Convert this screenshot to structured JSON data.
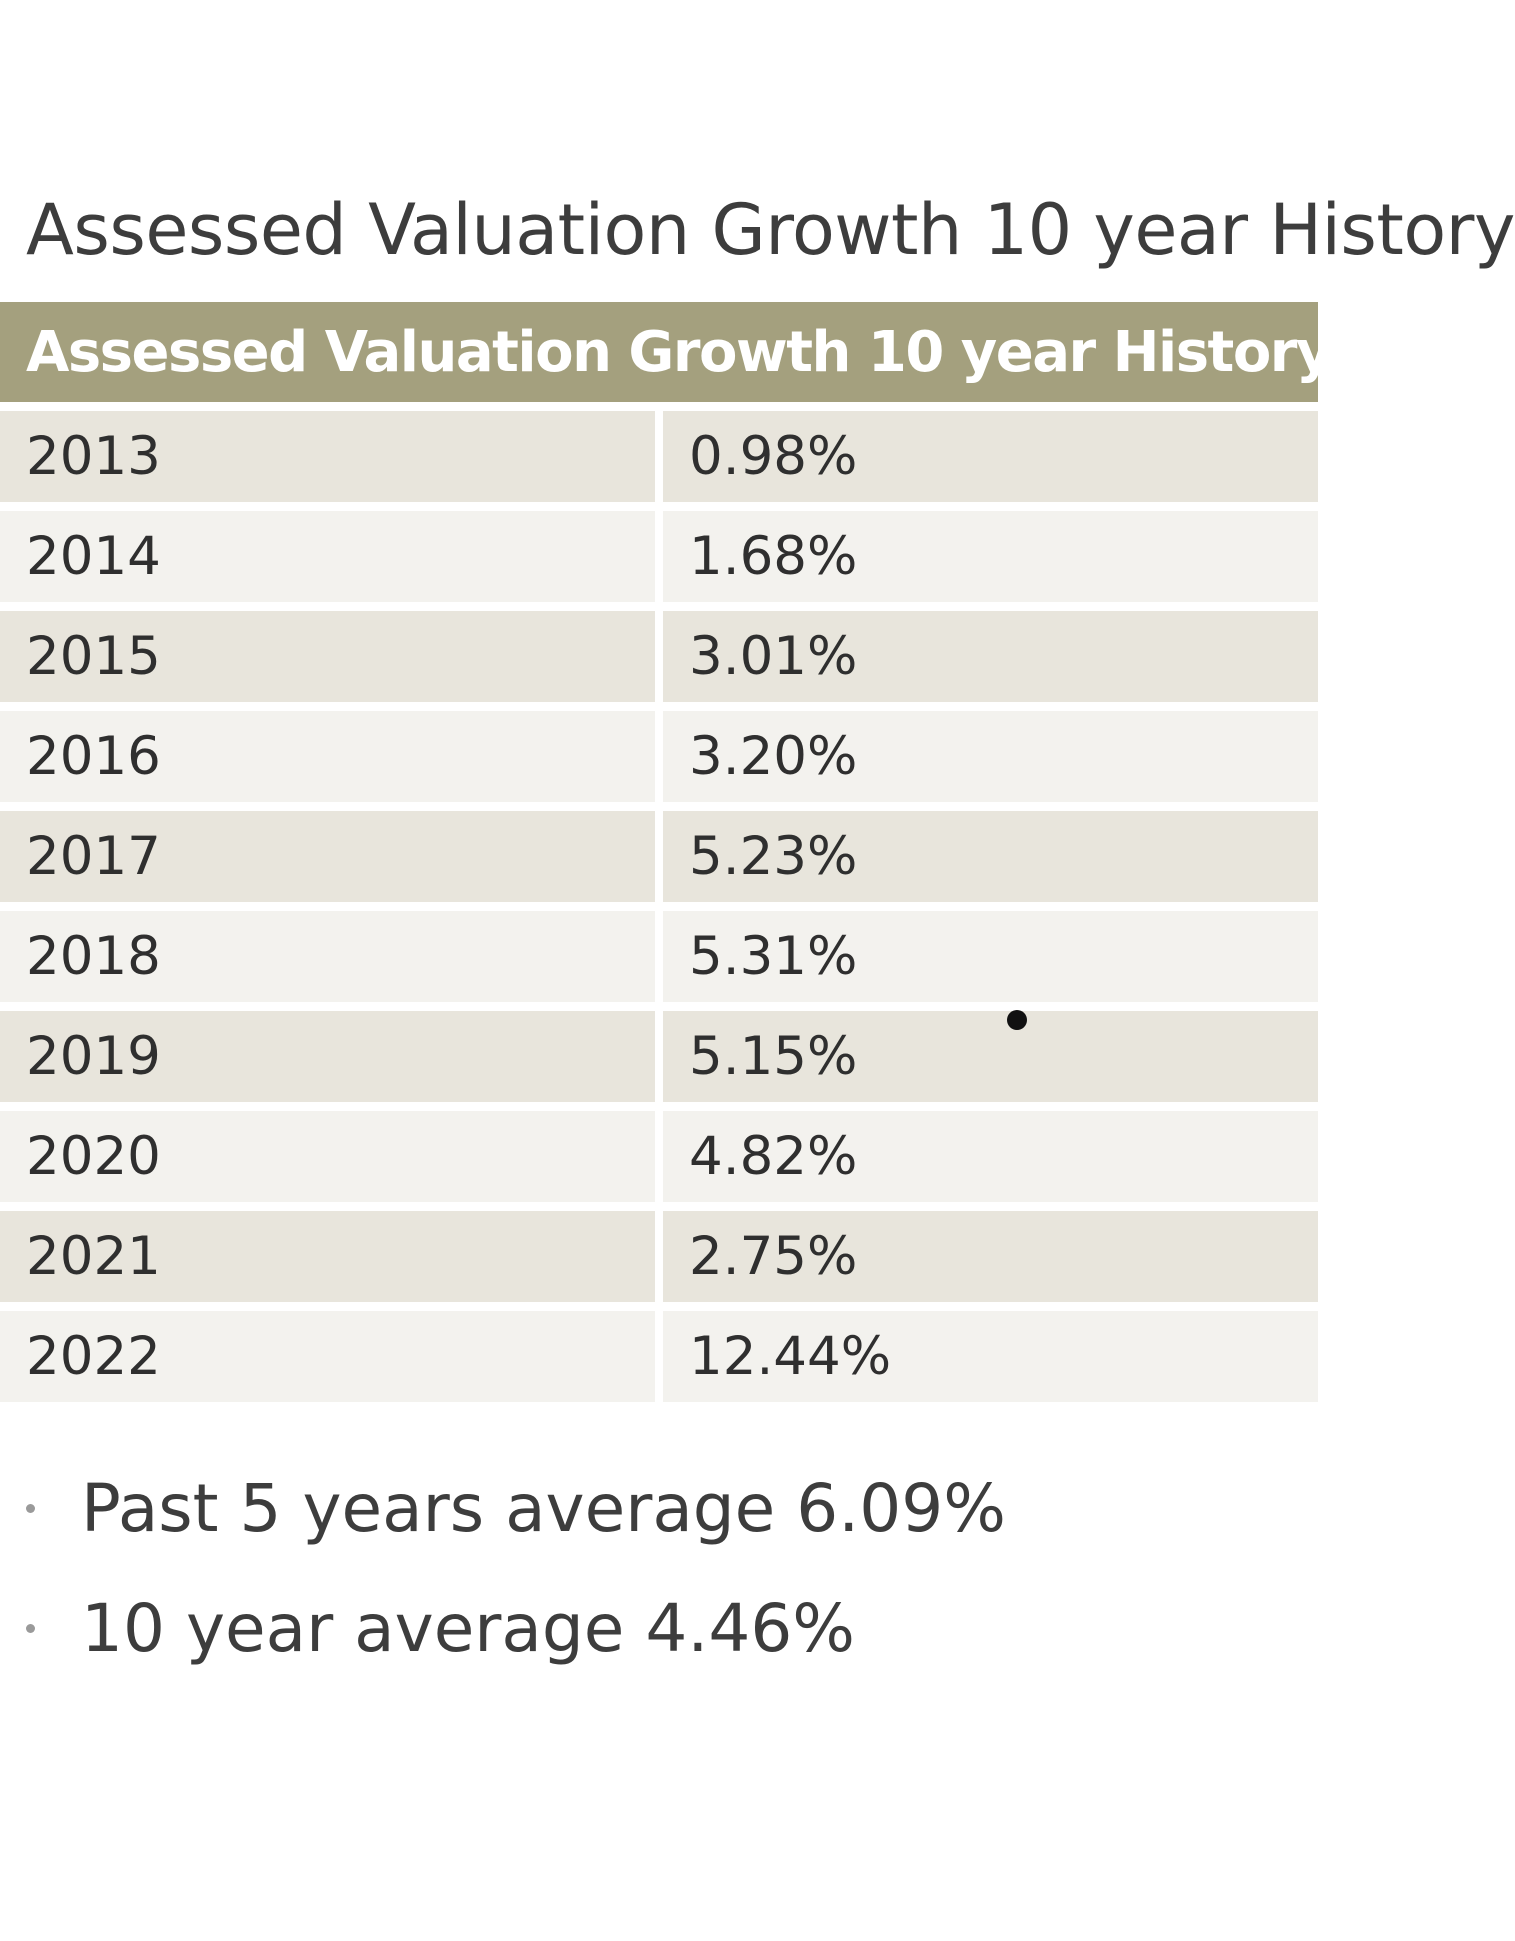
{
  "page": {
    "title": "Assessed Valuation Growth 10 year History"
  },
  "table": {
    "header": "Assessed Valuation Growth 10 year History",
    "rows": [
      {
        "year": "2013",
        "value": "0.98%"
      },
      {
        "year": "2014",
        "value": "1.68%"
      },
      {
        "year": "2015",
        "value": "3.01%"
      },
      {
        "year": "2016",
        "value": "3.20%"
      },
      {
        "year": "2017",
        "value": "5.23%"
      },
      {
        "year": "2018",
        "value": "5.31%"
      },
      {
        "year": "2019",
        "value": "5.15%"
      },
      {
        "year": "2020",
        "value": "4.82%"
      },
      {
        "year": "2021",
        "value": "2.75%"
      },
      {
        "year": "2022",
        "value": "12.44%"
      }
    ]
  },
  "summary": {
    "items": [
      "Past 5 years average 6.09%",
      "10 year average 4.46%"
    ]
  },
  "colors": {
    "header_bg": "#a4a07e",
    "row_odd_bg": "#e8e5dc",
    "row_even_bg": "#f3f2ee"
  }
}
